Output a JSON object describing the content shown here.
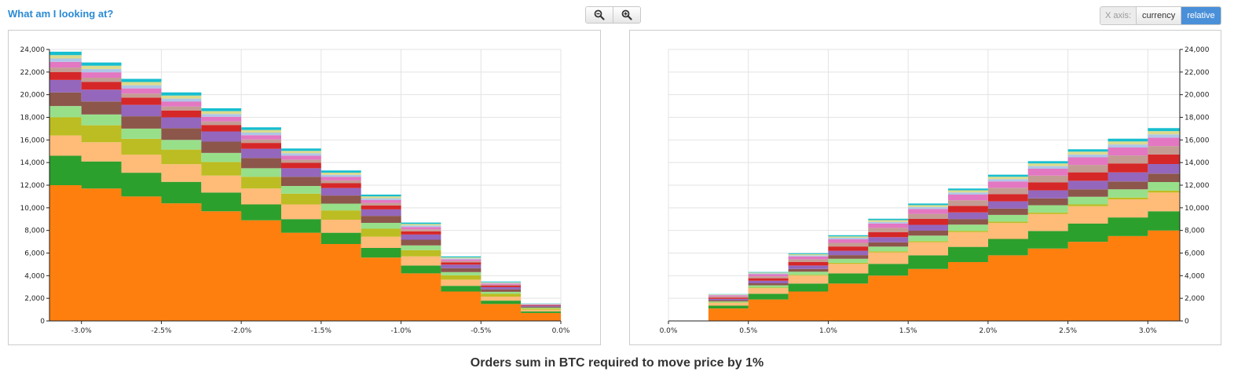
{
  "header": {
    "help_link": "What am I looking at?",
    "zoom_out_icon": "zoom-out-icon",
    "zoom_in_icon": "zoom-in-icon",
    "xaxis_label": "X axis:",
    "xaxis_options": [
      "currency",
      "relative"
    ],
    "xaxis_selected": "relative"
  },
  "footer": {
    "title": "Orders sum in BTC required to move price by 1%"
  },
  "colors": {
    "series": [
      "#ff7f0e",
      "#2ca02c",
      "#ffbb78",
      "#bcbd22",
      "#98df8a",
      "#8c564b",
      "#9467bd",
      "#d62728",
      "#c49c94",
      "#e377c2",
      "#aec7e8",
      "#dbdb8d",
      "#17becf"
    ],
    "grid": "#e3e3e3",
    "accent": "#4a90d9"
  },
  "chart_data": [
    {
      "type": "area",
      "stacked": true,
      "side": "bids",
      "xlim": [
        -3.2,
        0
      ],
      "ylim": [
        0,
        24000
      ],
      "xticks": [
        "-3.0%",
        "-2.5%",
        "-2.0%",
        "-1.5%",
        "-1.0%",
        "-0.5%",
        "0.0%"
      ],
      "xtick_values": [
        -3.0,
        -2.5,
        -2.0,
        -1.5,
        -1.0,
        -0.5,
        0.0
      ],
      "yticks": [
        "0",
        "2,000",
        "4,000",
        "6,000",
        "8,000",
        "10,000",
        "12,000",
        "14,000",
        "16,000",
        "18,000",
        "20,000",
        "22,000",
        "24,000"
      ],
      "ytick_values": [
        0,
        2000,
        4000,
        6000,
        8000,
        10000,
        12000,
        14000,
        16000,
        18000,
        20000,
        22000,
        24000
      ],
      "y_axis_side": "left",
      "grid": true,
      "x": [
        -3.2,
        -3.0,
        -2.75,
        -2.5,
        -2.25,
        -2.0,
        -1.75,
        -1.5,
        -1.25,
        -1.0,
        -0.75,
        -0.5,
        -0.25,
        0.0
      ],
      "series": [
        {
          "values": [
            12000,
            11700,
            11000,
            10400,
            9700,
            8900,
            7800,
            6800,
            5600,
            4200,
            2600,
            1500,
            700,
            0
          ]
        },
        {
          "values": [
            2600,
            2400,
            2100,
            1900,
            1650,
            1400,
            1200,
            1000,
            850,
            700,
            500,
            300,
            150,
            0
          ]
        },
        {
          "values": [
            1800,
            1700,
            1600,
            1550,
            1500,
            1400,
            1300,
            1150,
            1000,
            800,
            550,
            350,
            150,
            0
          ]
        },
        {
          "values": [
            1600,
            1500,
            1400,
            1300,
            1200,
            1050,
            950,
            820,
            700,
            560,
            380,
            240,
            100,
            0
          ]
        },
        {
          "values": [
            1000,
            950,
            900,
            850,
            800,
            750,
            680,
            600,
            520,
            420,
            290,
            180,
            80,
            0
          ]
        },
        {
          "values": [
            1200,
            1150,
            1100,
            1050,
            1000,
            900,
            820,
            720,
            620,
            500,
            340,
            220,
            90,
            0
          ]
        },
        {
          "values": [
            1100,
            1050,
            1000,
            950,
            900,
            820,
            750,
            660,
            570,
            460,
            310,
            200,
            80,
            0
          ]
        },
        {
          "values": [
            700,
            670,
            640,
            610,
            570,
            520,
            480,
            420,
            360,
            290,
            200,
            130,
            50,
            0
          ]
        },
        {
          "values": [
            400,
            380,
            360,
            340,
            320,
            300,
            280,
            250,
            210,
            170,
            120,
            80,
            30,
            0
          ]
        },
        {
          "values": [
            500,
            480,
            460,
            440,
            410,
            380,
            350,
            310,
            260,
            210,
            150,
            100,
            40,
            0
          ]
        },
        {
          "values": [
            300,
            290,
            280,
            270,
            250,
            230,
            210,
            190,
            160,
            130,
            90,
            60,
            25,
            0
          ]
        },
        {
          "values": [
            300,
            290,
            280,
            270,
            250,
            230,
            210,
            190,
            160,
            130,
            90,
            60,
            25,
            0
          ]
        },
        {
          "values": [
            300,
            290,
            280,
            270,
            250,
            230,
            210,
            190,
            160,
            130,
            90,
            60,
            25,
            0
          ]
        }
      ]
    },
    {
      "type": "area",
      "stacked": true,
      "side": "asks",
      "xlim": [
        0,
        3.2
      ],
      "ylim": [
        0,
        24000
      ],
      "xticks": [
        "0.0%",
        "0.5%",
        "1.0%",
        "1.5%",
        "2.0%",
        "2.5%",
        "3.0%"
      ],
      "xtick_values": [
        0.0,
        0.5,
        1.0,
        1.5,
        2.0,
        2.5,
        3.0
      ],
      "yticks": [
        "0",
        "2,000",
        "4,000",
        "6,000",
        "8,000",
        "10,000",
        "12,000",
        "14,000",
        "16,000",
        "18,000",
        "20,000",
        "22,000",
        "24,000"
      ],
      "ytick_values": [
        0,
        2000,
        4000,
        6000,
        8000,
        10000,
        12000,
        14000,
        16000,
        18000,
        20000,
        22000,
        24000
      ],
      "y_axis_side": "right",
      "grid": true,
      "x": [
        0.0,
        0.25,
        0.5,
        0.75,
        1.0,
        1.25,
        1.5,
        1.75,
        2.0,
        2.25,
        2.5,
        2.75,
        3.0,
        3.2
      ],
      "series": [
        {
          "values": [
            0,
            1100,
            1900,
            2600,
            3300,
            4000,
            4600,
            5200,
            5800,
            6400,
            7000,
            7500,
            8000,
            8400
          ]
        },
        {
          "values": [
            0,
            250,
            500,
            700,
            900,
            1050,
            1200,
            1350,
            1450,
            1550,
            1600,
            1650,
            1700,
            1700
          ]
        },
        {
          "values": [
            0,
            250,
            500,
            700,
            850,
            1000,
            1150,
            1300,
            1400,
            1500,
            1550,
            1600,
            1650,
            1700
          ]
        },
        {
          "values": [
            0,
            30,
            50,
            70,
            90,
            100,
            110,
            120,
            130,
            140,
            150,
            160,
            170,
            180
          ]
        },
        {
          "values": [
            0,
            100,
            200,
            280,
            360,
            420,
            480,
            540,
            590,
            640,
            680,
            720,
            760,
            800
          ]
        },
        {
          "values": [
            0,
            100,
            180,
            250,
            320,
            380,
            440,
            500,
            560,
            610,
            660,
            700,
            740,
            780
          ]
        },
        {
          "values": [
            0,
            120,
            220,
            300,
            380,
            450,
            520,
            580,
            640,
            700,
            750,
            800,
            850,
            900
          ]
        },
        {
          "values": [
            0,
            120,
            220,
            300,
            380,
            450,
            520,
            580,
            640,
            700,
            750,
            800,
            850,
            900
          ]
        },
        {
          "values": [
            0,
            100,
            180,
            250,
            320,
            380,
            440,
            500,
            560,
            610,
            660,
            700,
            740,
            780
          ]
        },
        {
          "values": [
            0,
            100,
            180,
            250,
            320,
            380,
            440,
            500,
            560,
            610,
            660,
            700,
            740,
            780
          ]
        },
        {
          "values": [
            0,
            40,
            70,
            100,
            130,
            150,
            170,
            190,
            210,
            230,
            250,
            270,
            290,
            300
          ]
        },
        {
          "values": [
            0,
            40,
            70,
            100,
            130,
            150,
            170,
            190,
            210,
            230,
            250,
            270,
            290,
            300
          ]
        },
        {
          "values": [
            0,
            30,
            60,
            80,
            100,
            120,
            140,
            160,
            180,
            200,
            220,
            240,
            260,
            280
          ]
        }
      ]
    }
  ]
}
